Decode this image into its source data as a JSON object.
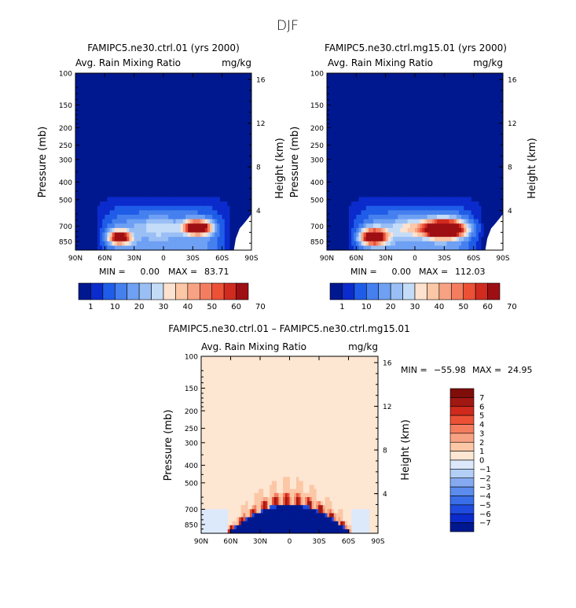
{
  "figure_title": "DJF",
  "colors": {
    "field_background": "#00188f",
    "diff_background": "#fde6d2",
    "abs_scale": [
      "#00188f",
      "#0b2bcc",
      "#1f5de8",
      "#4680ef",
      "#6ea0f3",
      "#9abff5",
      "#c4dcf8",
      "#fde3cf",
      "#fbc7a6",
      "#f7a383",
      "#f47d5f",
      "#ec5136",
      "#d12b20",
      "#9e0f13"
    ],
    "diff_scale": [
      "#00188f",
      "#0b2bcc",
      "#1f4bde",
      "#3a6ee8",
      "#5b8cee",
      "#86aaf2",
      "#b3cff6",
      "#dce9fb",
      "#fde6d2",
      "#fbc7a6",
      "#f7a383",
      "#f47d5f",
      "#ec5136",
      "#cf2a1c",
      "#a11813",
      "#7f0d0a"
    ]
  },
  "chart_data": [
    {
      "type": "heatmap",
      "panel": "left",
      "title": "FAMIPC5.ne30.ctrl.01 (yrs 2000)",
      "variable": "Avg. Rain Mixing Ratio",
      "units": "mg/kg",
      "ylabel": "Pressure (mb)",
      "ylabel_right": "Height (km)",
      "x_ticks": [
        "90N",
        "60N",
        "30N",
        "0",
        "30S",
        "60S",
        "90S"
      ],
      "x_range_lat": [
        90,
        -90
      ],
      "y_ticks": [
        "100",
        "150",
        "200",
        "250",
        "300",
        "400",
        "500",
        "700",
        "850"
      ],
      "y_tick_values": [
        100,
        150,
        200,
        250,
        300,
        400,
        500,
        700,
        850
      ],
      "y_range_mb": [
        100,
        950
      ],
      "height_ticks": [
        "4",
        "8",
        "12",
        "16"
      ],
      "height_tick_values": [
        4,
        8,
        12,
        16
      ],
      "min_label": "MIN =",
      "min_value": "0.00",
      "max_label": "MAX =",
      "max_value": "83.71",
      "colorbar_labels": [
        "1",
        "10",
        "20",
        "30",
        "40",
        "50",
        "60",
        "70"
      ],
      "features": [
        {
          "lat": 45,
          "p": 810,
          "rx_deg": 10,
          "ry_mb": 60,
          "peak": 70
        },
        {
          "lat": -35,
          "p": 715,
          "rx_deg": 12,
          "ry_mb": 55,
          "peak": 83
        },
        {
          "lat": 5,
          "p": 720,
          "rx_deg": 18,
          "ry_mb": 80,
          "peak": 12
        }
      ]
    },
    {
      "type": "heatmap",
      "panel": "right",
      "title": "FAMIPC5.ne30.ctrl.mg15.01 (yrs 2000)",
      "variable": "Avg. Rain Mixing Ratio",
      "units": "mg/kg",
      "ylabel": "Pressure (mb)",
      "ylabel_right": "Height (km)",
      "x_ticks": [
        "90N",
        "60N",
        "30N",
        "0",
        "30S",
        "60S",
        "90S"
      ],
      "x_range_lat": [
        90,
        -90
      ],
      "y_ticks": [
        "100",
        "150",
        "200",
        "250",
        "300",
        "400",
        "500",
        "700",
        "850"
      ],
      "y_tick_values": [
        100,
        150,
        200,
        250,
        300,
        400,
        500,
        700,
        850
      ],
      "y_range_mb": [
        100,
        950
      ],
      "height_ticks": [
        "4",
        "8",
        "12",
        "16"
      ],
      "height_tick_values": [
        4,
        8,
        12,
        16
      ],
      "min_label": "MIN =",
      "min_value": "0.00",
      "max_label": "MAX =",
      "max_value": "112.03",
      "colorbar_labels": [
        "1",
        "10",
        "20",
        "30",
        "40",
        "50",
        "60",
        "70"
      ],
      "features": [
        {
          "lat": 42,
          "p": 805,
          "rx_deg": 12,
          "ry_mb": 70,
          "peak": 80
        },
        {
          "lat": -30,
          "p": 730,
          "rx_deg": 18,
          "ry_mb": 70,
          "peak": 112
        },
        {
          "lat": 5,
          "p": 720,
          "rx_deg": 18,
          "ry_mb": 80,
          "peak": 15
        }
      ]
    },
    {
      "type": "heatmap",
      "panel": "difference",
      "title": "FAMIPC5.ne30.ctrl.01 – FAMIPC5.ne30.ctrl.mg15.01",
      "variable": "Avg. Rain Mixing Ratio",
      "units": "mg/kg",
      "ylabel": "Pressure (mb)",
      "ylabel_right": "Height (km)",
      "x_ticks": [
        "90N",
        "60N",
        "30N",
        "0",
        "30S",
        "60S",
        "90S"
      ],
      "x_range_lat": [
        90,
        -90
      ],
      "y_ticks": [
        "100",
        "150",
        "200",
        "250",
        "300",
        "400",
        "500",
        "700",
        "850"
      ],
      "y_tick_values": [
        100,
        150,
        200,
        250,
        300,
        400,
        500,
        700,
        850
      ],
      "y_range_mb": [
        100,
        950
      ],
      "height_ticks": [
        "4",
        "8",
        "12",
        "16"
      ],
      "height_tick_values": [
        4,
        8,
        12,
        16
      ],
      "min_label": "MIN =",
      "min_value": "−55.98",
      "max_label": "MAX =",
      "max_value": "24.95",
      "colorbar_labels": [
        "7",
        "6",
        "5",
        "4",
        "3",
        "2",
        "1",
        "0",
        "−1",
        "−2",
        "−3",
        "−4",
        "−5",
        "−6",
        "−7"
      ],
      "colorbar_placement": "right"
    }
  ]
}
